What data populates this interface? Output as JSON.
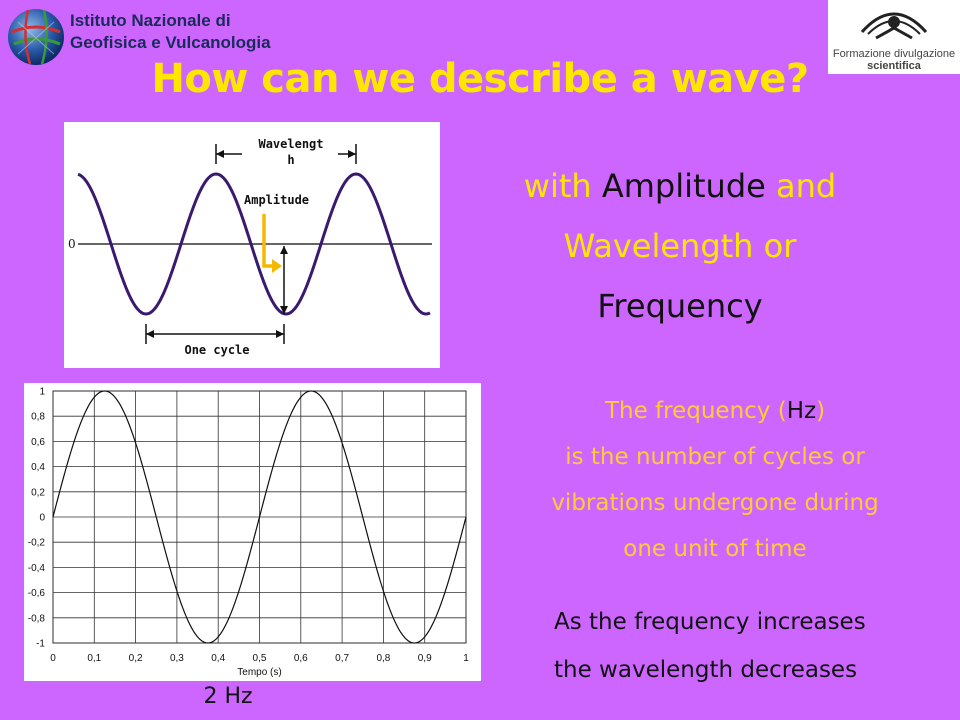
{
  "header": {
    "ingv_logo_line1": "Istituto Nazionale di",
    "ingv_logo_line2": "Geofisica e Vulcanologia",
    "fds_logo_line1": "Formazione divulgazione",
    "fds_logo_line2": "scientifica"
  },
  "title": "How can we describe a wave?",
  "top_diagram": {
    "wavelength_label_1": "Wavelengt",
    "wavelength_label_2": "h",
    "amplitude_label": "Amplitude",
    "zero_label": "0",
    "cycle_label": "One cycle",
    "wave_color": "#3a1a6e",
    "arrow_color": "#f5b800"
  },
  "main_text": {
    "part1": "with ",
    "part2": "Amplitude",
    "part3": " and",
    "part4": "Wavelength or",
    "part5": "Frequency"
  },
  "frequency_text": {
    "line1_a": "The frequency (",
    "line1_b": "Hz",
    "line1_c": ")",
    "line2": "is the number of cycles or",
    "line3": "vibrations undergone during",
    "line4": "one unit of time"
  },
  "relation_text": {
    "line1": "As the frequency increases",
    "line2": "the wavelength decreases"
  },
  "caption": "2 Hz",
  "chart_data": {
    "type": "line",
    "frequency_hz": 2,
    "function": "sin(2*pi*2*t)",
    "xlabel": "Tempo (s)",
    "ylabel": "",
    "xlim": [
      0,
      1
    ],
    "ylim": [
      -1,
      1
    ],
    "x_ticks": [
      "0",
      "0,1",
      "0,2",
      "0,3",
      "0,4",
      "0,5",
      "0,6",
      "0,7",
      "0,8",
      "0,9",
      "1"
    ],
    "y_ticks": [
      "1",
      "0,8",
      "0,6",
      "0,4",
      "0,2",
      "0",
      "-0,2",
      "-0,4",
      "-0,6",
      "-0,8",
      "-1"
    ],
    "grid": true,
    "x": [
      0,
      0.125,
      0.25,
      0.375,
      0.5,
      0.625,
      0.75,
      0.875,
      1.0
    ],
    "y": [
      0,
      1,
      0,
      -1,
      0,
      1,
      0,
      -1,
      0
    ]
  }
}
